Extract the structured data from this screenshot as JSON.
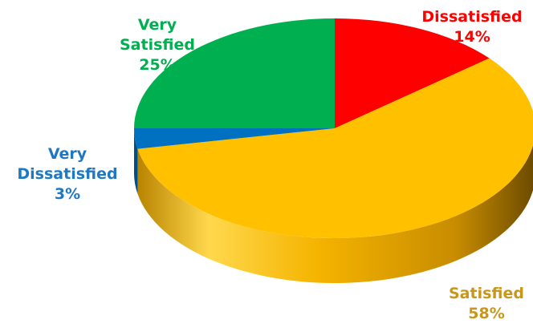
{
  "chart_data": {
    "type": "pie",
    "style": "3d-exploded-none",
    "legend": "none",
    "slices": [
      {
        "category": "Dissatisfied",
        "value": 14,
        "label_lines": [
          "Dissatisfied",
          "14%"
        ],
        "color": "#ff0000"
      },
      {
        "category": "Satisfied",
        "value": 58,
        "label_lines": [
          "Satisfied",
          "58%"
        ],
        "color": "#ffc000"
      },
      {
        "category": "Very Dissatisfied",
        "value": 3,
        "label_lines": [
          "Very",
          "Dissatisfied",
          "3%"
        ],
        "color": "#0070c0"
      },
      {
        "category": "Very Satisfied",
        "value": 25,
        "label_lines": [
          "Very",
          "Satisfied",
          "25%"
        ],
        "color": "#00b050"
      }
    ]
  }
}
